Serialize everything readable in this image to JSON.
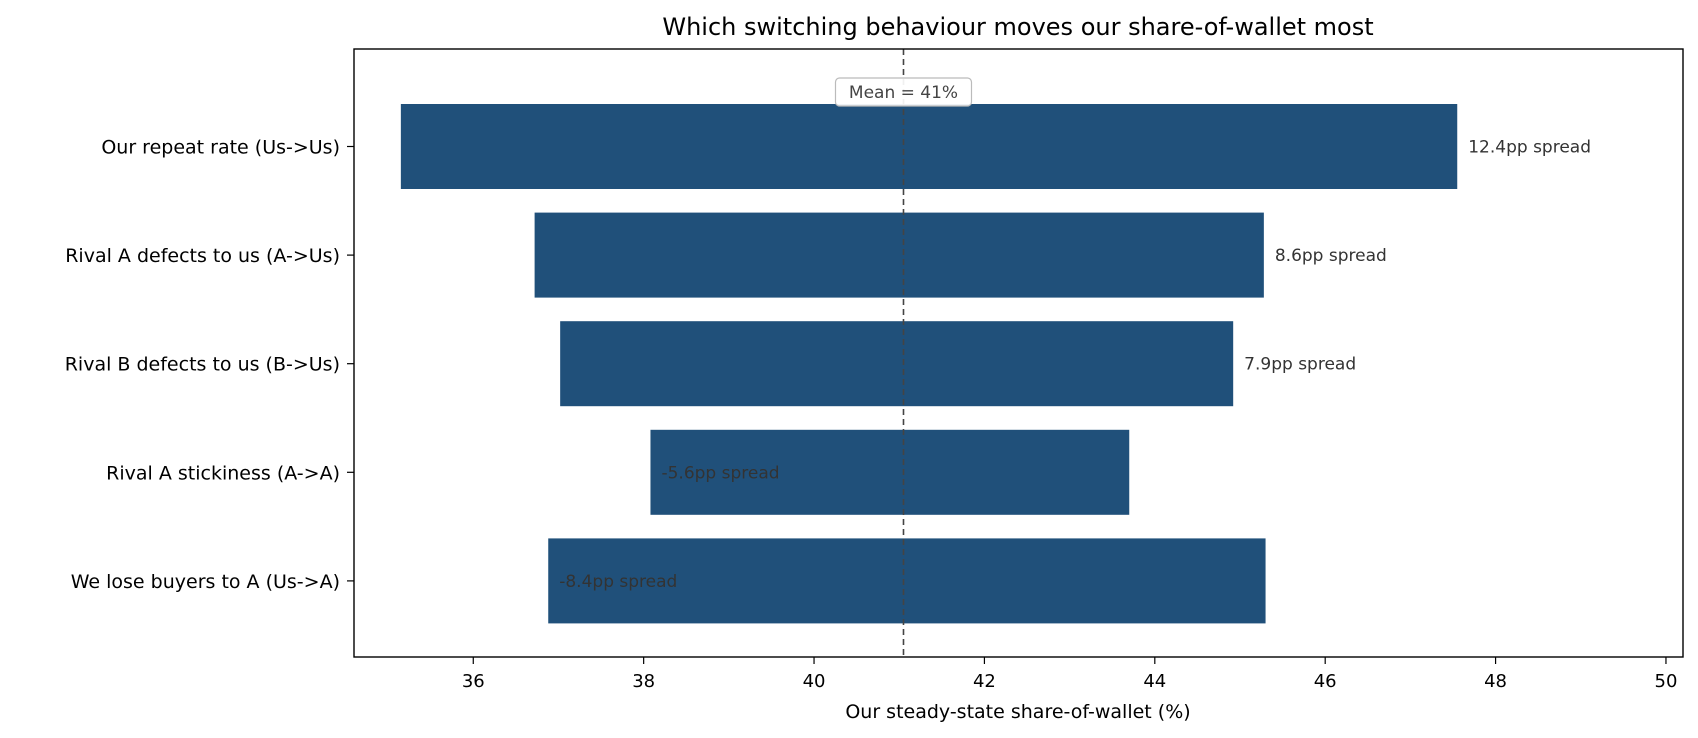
{
  "chart_data": {
    "type": "bar",
    "orientation": "horizontal",
    "style": "tornado",
    "title": "Which switching behaviour moves our share-of-wallet most",
    "xlabel": "Our steady-state share-of-wallet (%)",
    "ylabel": "",
    "xlim": [
      34.6,
      50.2
    ],
    "xticks": [
      36,
      38,
      40,
      42,
      44,
      46,
      48,
      50
    ],
    "grid": false,
    "bar_color": "#20507a",
    "reference_line": {
      "value": 41.05,
      "label": "Mean = 41%"
    },
    "categories": [
      "Our repeat rate (Us->Us)",
      "Rival A defects to us (A->Us)",
      "Rival B defects to us (B->Us)",
      "Rival A stickiness (A->A)",
      "We lose buyers to A (Us->A)"
    ],
    "bars": [
      {
        "low": 35.15,
        "high": 47.55,
        "label": "12.4pp spread"
      },
      {
        "low": 36.72,
        "high": 45.28,
        "label": "8.6pp spread"
      },
      {
        "low": 37.02,
        "high": 44.92,
        "label": "7.9pp spread"
      },
      {
        "low": 38.08,
        "high": 43.7,
        "label": "-5.6pp spread"
      },
      {
        "low": 36.88,
        "high": 45.3,
        "label": "-8.4pp spread"
      }
    ]
  }
}
